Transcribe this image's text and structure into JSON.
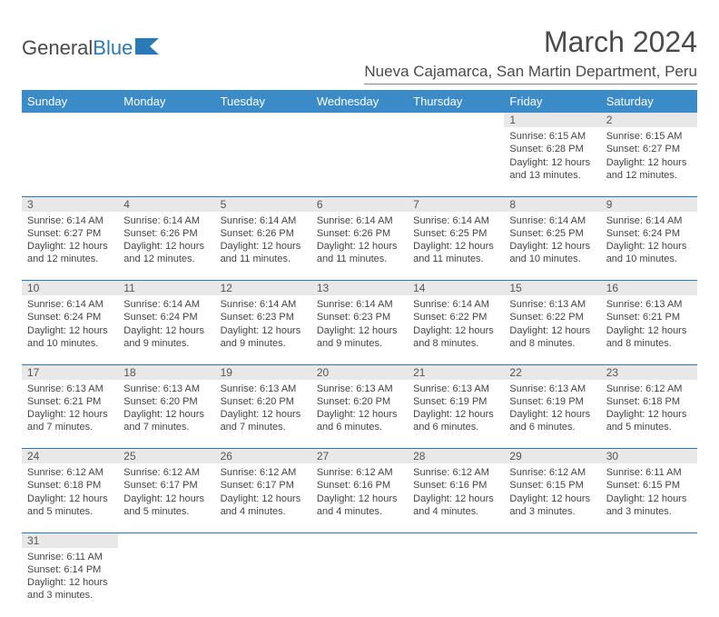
{
  "logo": {
    "text1": "General",
    "text2": "Blue"
  },
  "title": "March 2024",
  "location": "Nueva Cajamarca, San Martin Department, Peru",
  "colors": {
    "header_bg": "#3b8bc8",
    "header_text": "#ffffff",
    "daynum_bg": "#e8e8e8",
    "cell_border": "#2a7ab8",
    "text": "#444444",
    "logo_blue": "#2a7ab8"
  },
  "weekdays": [
    "Sunday",
    "Monday",
    "Tuesday",
    "Wednesday",
    "Thursday",
    "Friday",
    "Saturday"
  ],
  "weeks": [
    [
      null,
      null,
      null,
      null,
      null,
      {
        "d": "1",
        "sr": "Sunrise: 6:15 AM",
        "ss": "Sunset: 6:28 PM",
        "dl1": "Daylight: 12 hours",
        "dl2": "and 13 minutes."
      },
      {
        "d": "2",
        "sr": "Sunrise: 6:15 AM",
        "ss": "Sunset: 6:27 PM",
        "dl1": "Daylight: 12 hours",
        "dl2": "and 12 minutes."
      }
    ],
    [
      {
        "d": "3",
        "sr": "Sunrise: 6:14 AM",
        "ss": "Sunset: 6:27 PM",
        "dl1": "Daylight: 12 hours",
        "dl2": "and 12 minutes."
      },
      {
        "d": "4",
        "sr": "Sunrise: 6:14 AM",
        "ss": "Sunset: 6:26 PM",
        "dl1": "Daylight: 12 hours",
        "dl2": "and 12 minutes."
      },
      {
        "d": "5",
        "sr": "Sunrise: 6:14 AM",
        "ss": "Sunset: 6:26 PM",
        "dl1": "Daylight: 12 hours",
        "dl2": "and 11 minutes."
      },
      {
        "d": "6",
        "sr": "Sunrise: 6:14 AM",
        "ss": "Sunset: 6:26 PM",
        "dl1": "Daylight: 12 hours",
        "dl2": "and 11 minutes."
      },
      {
        "d": "7",
        "sr": "Sunrise: 6:14 AM",
        "ss": "Sunset: 6:25 PM",
        "dl1": "Daylight: 12 hours",
        "dl2": "and 11 minutes."
      },
      {
        "d": "8",
        "sr": "Sunrise: 6:14 AM",
        "ss": "Sunset: 6:25 PM",
        "dl1": "Daylight: 12 hours",
        "dl2": "and 10 minutes."
      },
      {
        "d": "9",
        "sr": "Sunrise: 6:14 AM",
        "ss": "Sunset: 6:24 PM",
        "dl1": "Daylight: 12 hours",
        "dl2": "and 10 minutes."
      }
    ],
    [
      {
        "d": "10",
        "sr": "Sunrise: 6:14 AM",
        "ss": "Sunset: 6:24 PM",
        "dl1": "Daylight: 12 hours",
        "dl2": "and 10 minutes."
      },
      {
        "d": "11",
        "sr": "Sunrise: 6:14 AM",
        "ss": "Sunset: 6:24 PM",
        "dl1": "Daylight: 12 hours",
        "dl2": "and 9 minutes."
      },
      {
        "d": "12",
        "sr": "Sunrise: 6:14 AM",
        "ss": "Sunset: 6:23 PM",
        "dl1": "Daylight: 12 hours",
        "dl2": "and 9 minutes."
      },
      {
        "d": "13",
        "sr": "Sunrise: 6:14 AM",
        "ss": "Sunset: 6:23 PM",
        "dl1": "Daylight: 12 hours",
        "dl2": "and 9 minutes."
      },
      {
        "d": "14",
        "sr": "Sunrise: 6:14 AM",
        "ss": "Sunset: 6:22 PM",
        "dl1": "Daylight: 12 hours",
        "dl2": "and 8 minutes."
      },
      {
        "d": "15",
        "sr": "Sunrise: 6:13 AM",
        "ss": "Sunset: 6:22 PM",
        "dl1": "Daylight: 12 hours",
        "dl2": "and 8 minutes."
      },
      {
        "d": "16",
        "sr": "Sunrise: 6:13 AM",
        "ss": "Sunset: 6:21 PM",
        "dl1": "Daylight: 12 hours",
        "dl2": "and 8 minutes."
      }
    ],
    [
      {
        "d": "17",
        "sr": "Sunrise: 6:13 AM",
        "ss": "Sunset: 6:21 PM",
        "dl1": "Daylight: 12 hours",
        "dl2": "and 7 minutes."
      },
      {
        "d": "18",
        "sr": "Sunrise: 6:13 AM",
        "ss": "Sunset: 6:20 PM",
        "dl1": "Daylight: 12 hours",
        "dl2": "and 7 minutes."
      },
      {
        "d": "19",
        "sr": "Sunrise: 6:13 AM",
        "ss": "Sunset: 6:20 PM",
        "dl1": "Daylight: 12 hours",
        "dl2": "and 7 minutes."
      },
      {
        "d": "20",
        "sr": "Sunrise: 6:13 AM",
        "ss": "Sunset: 6:20 PM",
        "dl1": "Daylight: 12 hours",
        "dl2": "and 6 minutes."
      },
      {
        "d": "21",
        "sr": "Sunrise: 6:13 AM",
        "ss": "Sunset: 6:19 PM",
        "dl1": "Daylight: 12 hours",
        "dl2": "and 6 minutes."
      },
      {
        "d": "22",
        "sr": "Sunrise: 6:13 AM",
        "ss": "Sunset: 6:19 PM",
        "dl1": "Daylight: 12 hours",
        "dl2": "and 6 minutes."
      },
      {
        "d": "23",
        "sr": "Sunrise: 6:12 AM",
        "ss": "Sunset: 6:18 PM",
        "dl1": "Daylight: 12 hours",
        "dl2": "and 5 minutes."
      }
    ],
    [
      {
        "d": "24",
        "sr": "Sunrise: 6:12 AM",
        "ss": "Sunset: 6:18 PM",
        "dl1": "Daylight: 12 hours",
        "dl2": "and 5 minutes."
      },
      {
        "d": "25",
        "sr": "Sunrise: 6:12 AM",
        "ss": "Sunset: 6:17 PM",
        "dl1": "Daylight: 12 hours",
        "dl2": "and 5 minutes."
      },
      {
        "d": "26",
        "sr": "Sunrise: 6:12 AM",
        "ss": "Sunset: 6:17 PM",
        "dl1": "Daylight: 12 hours",
        "dl2": "and 4 minutes."
      },
      {
        "d": "27",
        "sr": "Sunrise: 6:12 AM",
        "ss": "Sunset: 6:16 PM",
        "dl1": "Daylight: 12 hours",
        "dl2": "and 4 minutes."
      },
      {
        "d": "28",
        "sr": "Sunrise: 6:12 AM",
        "ss": "Sunset: 6:16 PM",
        "dl1": "Daylight: 12 hours",
        "dl2": "and 4 minutes."
      },
      {
        "d": "29",
        "sr": "Sunrise: 6:12 AM",
        "ss": "Sunset: 6:15 PM",
        "dl1": "Daylight: 12 hours",
        "dl2": "and 3 minutes."
      },
      {
        "d": "30",
        "sr": "Sunrise: 6:11 AM",
        "ss": "Sunset: 6:15 PM",
        "dl1": "Daylight: 12 hours",
        "dl2": "and 3 minutes."
      }
    ],
    [
      {
        "d": "31",
        "sr": "Sunrise: 6:11 AM",
        "ss": "Sunset: 6:14 PM",
        "dl1": "Daylight: 12 hours",
        "dl2": "and 3 minutes."
      },
      null,
      null,
      null,
      null,
      null,
      null
    ]
  ]
}
